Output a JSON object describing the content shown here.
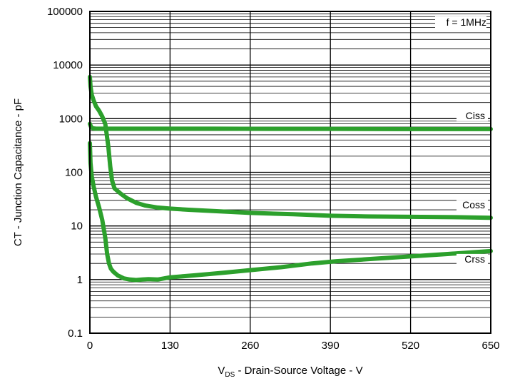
{
  "chart_data": {
    "type": "line",
    "title": "",
    "xlabel_main": "V",
    "xlabel_sub": "DS",
    "xlabel_rest": " - Drain-Source Voltage - V",
    "ylabel": "CT - Junction Capacitance - pF",
    "xlim": [
      0,
      650
    ],
    "ylim": [
      0.1,
      100000
    ],
    "yscale": "log",
    "grid": true,
    "x_ticks": [
      0,
      130,
      260,
      390,
      520,
      650
    ],
    "y_ticks": [
      "0.1",
      "1",
      "10",
      "100",
      "1000",
      "10000",
      "100000"
    ],
    "y_tick_values": [
      0.1,
      1,
      10,
      100,
      1000,
      10000,
      100000
    ],
    "annotation": "f = 1MHz",
    "line_color": "#2ca02c",
    "series": [
      {
        "name": "Ciss",
        "x": [
          0,
          2,
          5,
          10,
          20,
          50,
          100,
          200,
          300,
          400,
          500,
          650
        ],
        "y": [
          800,
          700,
          660,
          650,
          650,
          650,
          650,
          650,
          645,
          645,
          640,
          640
        ]
      },
      {
        "name": "Coss",
        "x": [
          0,
          1,
          3,
          6,
          10,
          15,
          20,
          25,
          30,
          33,
          36,
          40,
          50,
          60,
          75,
          90,
          110,
          130,
          160,
          200,
          260,
          330,
          390,
          450,
          520,
          600,
          650
        ],
        "y": [
          6000,
          4000,
          2800,
          2200,
          1700,
          1400,
          1100,
          800,
          300,
          130,
          70,
          50,
          40,
          33,
          27,
          24,
          22,
          21,
          20,
          19,
          17.5,
          16.5,
          15.5,
          15,
          14.8,
          14.5,
          14.2
        ]
      },
      {
        "name": "Crss",
        "x": [
          0,
          1,
          3,
          6,
          10,
          15,
          20,
          25,
          28,
          31,
          34,
          38,
          45,
          55,
          65,
          75,
          85,
          95,
          110,
          130,
          170,
          220,
          260,
          310,
          360,
          400,
          450,
          520,
          580,
          650
        ],
        "y": [
          350,
          150,
          85,
          55,
          35,
          22,
          13,
          6,
          3,
          2,
          1.6,
          1.4,
          1.2,
          1.05,
          1.0,
          0.98,
          1.0,
          1.02,
          1.0,
          1.1,
          1.2,
          1.35,
          1.5,
          1.7,
          2.0,
          2.2,
          2.4,
          2.7,
          3.0,
          3.4
        ]
      }
    ]
  }
}
